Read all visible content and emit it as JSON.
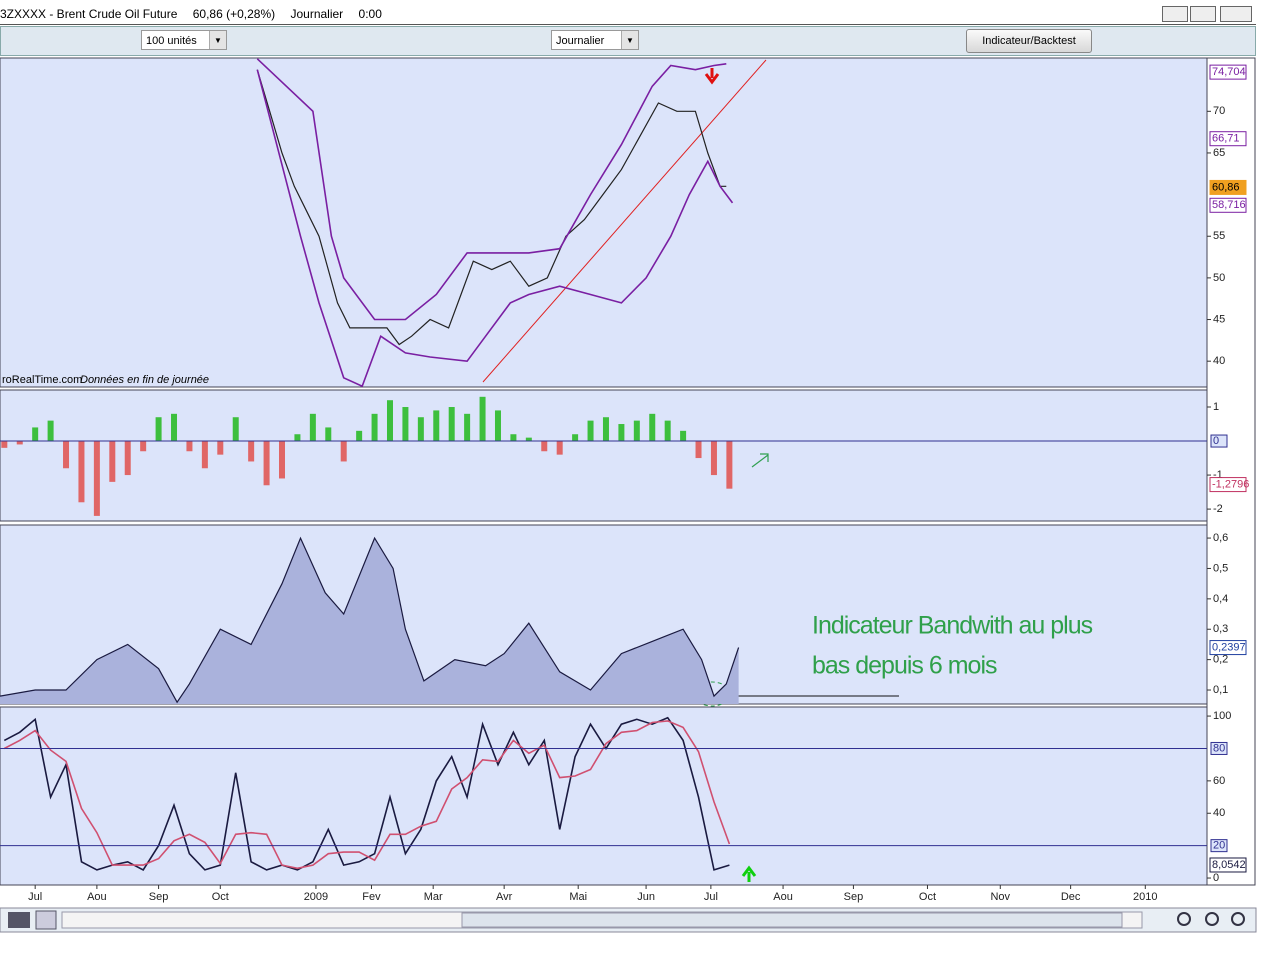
{
  "window": {
    "title": "3ZXXXX - Brent Crude Oil Future",
    "price": "60,86 (+0,28%)",
    "period": "Journalier",
    "time": "0:00"
  },
  "toolbar": {
    "units": "100 unités",
    "period": "Journalier",
    "button": "Indicateur/Backtest"
  },
  "source": "roRealTime.com",
  "note": "Données en fin de journée",
  "chart_data": [
    {
      "type": "line",
      "xlim": [
        -0.57,
        18.99
      ],
      "ylim": [
        36.9,
        76.4
      ],
      "yticks": [
        40,
        45,
        50,
        55,
        65,
        70
      ],
      "markers": [
        {
          "value": 74.704,
          "label": "74,704",
          "color": "#7a1fa2"
        },
        {
          "value": 66.71,
          "label": "66,71",
          "color": "#7a1fa2"
        },
        {
          "value": 60.86,
          "label": "60,86",
          "color": "#f0a020"
        },
        {
          "value": 58.716,
          "label": "58,716",
          "color": "#7a1fa2"
        }
      ],
      "series": [
        {
          "color": "#222222",
          "x": [
            3.6,
            3.8,
            4.0,
            4.2,
            4.4,
            4.6,
            4.9,
            5.1,
            5.4,
            5.7,
            5.9,
            6.1,
            6.4,
            6.7,
            6.9,
            7.1,
            7.4,
            7.7,
            8.0,
            8.3,
            8.6,
            8.9,
            9.2,
            9.5,
            9.8,
            10.1,
            10.4,
            10.7,
            10.9,
            11.1,
            11.2
          ],
          "values": [
            75,
            70,
            65,
            61,
            58,
            55,
            47,
            44,
            44,
            44,
            42,
            43,
            45,
            44,
            48,
            52,
            51,
            52,
            49,
            50,
            55,
            57,
            60,
            63,
            67,
            71,
            70,
            70,
            65,
            61,
            61
          ]
        },
        {
          "color": "#7a1fa2",
          "x": [
            3.6,
            4.3,
            4.6,
            5.0,
            5.3,
            5.6,
            6.0,
            6.4,
            7.0,
            7.3,
            7.7,
            8.0,
            8.5,
            9.0,
            9.5,
            9.9,
            10.3,
            10.6,
            10.9,
            11.1,
            11.3
          ],
          "values": [
            75,
            55,
            47,
            38,
            37,
            43,
            41,
            40.5,
            40,
            43,
            47,
            48,
            49,
            48,
            47,
            50,
            55,
            60,
            64,
            61,
            59
          ]
        },
        {
          "color": "#7a1fa2",
          "x": [
            3.6,
            4.5,
            4.8,
            5.0,
            5.5,
            6.0,
            6.5,
            7.0,
            7.5,
            8.0,
            8.5,
            9.0,
            9.5,
            10.0,
            10.3,
            10.7,
            11.0,
            11.2
          ],
          "values": [
            76.3,
            70,
            55,
            50,
            45,
            45,
            48,
            53,
            53,
            53,
            53.5,
            60,
            66,
            73,
            75.5,
            75,
            75.5,
            75.7
          ]
        }
      ]
    },
    {
      "type": "bar",
      "xlim": [
        -0.57,
        18.99
      ],
      "ylim": [
        -2.35,
        1.5
      ],
      "yticks": [
        1,
        -1,
        -2
      ],
      "lines": [
        {
          "value": 0,
          "label": "0"
        }
      ],
      "markers": [
        {
          "value": -1.2796,
          "label": "-1,2796",
          "color": "#c03060"
        }
      ],
      "colors": {
        "positive": "#3dbf3d",
        "negative": "#e06666"
      },
      "x": [
        -0.5,
        -0.25,
        0,
        0.25,
        0.5,
        0.75,
        1.0,
        1.25,
        1.5,
        1.75,
        2.0,
        2.25,
        2.5,
        2.75,
        3.0,
        3.25,
        3.5,
        3.75,
        4.0,
        4.25,
        4.5,
        4.75,
        5.0,
        5.25,
        5.5,
        5.75,
        6.0,
        6.25,
        6.5,
        6.75,
        7.0,
        7.25,
        7.5,
        7.75,
        8.0,
        8.25,
        8.5,
        8.75,
        9.0,
        9.25,
        9.5,
        9.75,
        10.0,
        10.25,
        10.5,
        10.75,
        11.0,
        11.25
      ],
      "values": [
        -0.2,
        -0.1,
        0.4,
        0.6,
        -0.8,
        -1.8,
        -2.2,
        -1.2,
        -1.0,
        -0.3,
        0.7,
        0.8,
        -0.3,
        -0.8,
        -0.4,
        0.7,
        -0.6,
        -1.3,
        -1.1,
        0.2,
        0.8,
        0.4,
        -0.6,
        0.3,
        0.8,
        1.2,
        1.0,
        0.7,
        0.9,
        1.0,
        0.8,
        1.3,
        0.9,
        0.2,
        0.1,
        -0.3,
        -0.4,
        0.2,
        0.6,
        0.7,
        0.5,
        0.6,
        0.8,
        0.6,
        0.3,
        -0.5,
        -1.0,
        -1.4
      ]
    },
    {
      "type": "area",
      "xlim": [
        -0.57,
        18.99
      ],
      "ylim": [
        0.054,
        0.643
      ],
      "yticks": [
        {
          "value": 0.6,
          "label": "0,6"
        },
        {
          "value": 0.5,
          "label": "0,5"
        },
        {
          "value": 0.4,
          "label": "0,4"
        },
        {
          "value": 0.3,
          "label": "0,3"
        },
        {
          "value": 0.2,
          "label": "0,2"
        },
        {
          "value": 0.1,
          "label": "0,1"
        }
      ],
      "markers": [
        {
          "value": 0.2397,
          "label": "0,2397",
          "color": "#2040a0"
        }
      ],
      "color": "#1a1a40",
      "fill": "#aab2dc",
      "annotation": [
        "Indicateur Bandwith au plus",
        "bas depuis 6 mois"
      ],
      "x": [
        -0.57,
        0,
        0.5,
        1.0,
        1.5,
        2.0,
        2.3,
        2.5,
        3.0,
        3.5,
        4.0,
        4.3,
        4.7,
        5.0,
        5.5,
        5.8,
        6.0,
        6.3,
        6.8,
        7.3,
        7.6,
        8.0,
        8.5,
        9.0,
        9.5,
        10.0,
        10.5,
        10.8,
        11.0,
        11.2,
        11.4
      ],
      "values": [
        0.08,
        0.1,
        0.1,
        0.2,
        0.25,
        0.17,
        0.06,
        0.12,
        0.3,
        0.25,
        0.45,
        0.6,
        0.42,
        0.35,
        0.6,
        0.5,
        0.3,
        0.13,
        0.2,
        0.18,
        0.22,
        0.32,
        0.16,
        0.1,
        0.22,
        0.26,
        0.3,
        0.2,
        0.08,
        0.12,
        0.24
      ]
    },
    {
      "type": "line",
      "xlim": [
        -0.57,
        18.99
      ],
      "ylim": [
        -4.3,
        105.6
      ],
      "yticks": [
        100,
        60,
        40,
        0
      ],
      "lines": [
        {
          "value": 80,
          "label": "80"
        },
        {
          "value": 20,
          "label": "20"
        }
      ],
      "markers": [
        {
          "value": 8.0542,
          "label": "8,0542",
          "color": "#1a1a40"
        }
      ],
      "xticks": [
        {
          "value": 0,
          "label": "Jul"
        },
        {
          "value": 1,
          "label": "Aou"
        },
        {
          "value": 2,
          "label": "Sep"
        },
        {
          "value": 3,
          "label": "Oct"
        },
        {
          "value": 4.55,
          "label": "2009"
        },
        {
          "value": 5.45,
          "label": "Fev"
        },
        {
          "value": 6.45,
          "label": "Mar"
        },
        {
          "value": 7.6,
          "label": "Avr"
        },
        {
          "value": 8.8,
          "label": "Mai"
        },
        {
          "value": 9.9,
          "label": "Jun"
        },
        {
          "value": 10.95,
          "label": "Jul"
        },
        {
          "value": 12.12,
          "label": "Aou"
        },
        {
          "value": 13.26,
          "label": "Sep"
        },
        {
          "value": 14.46,
          "label": "Oct"
        },
        {
          "value": 15.64,
          "label": "Nov"
        },
        {
          "value": 16.78,
          "label": "Dec"
        },
        {
          "value": 17.99,
          "label": "2010"
        }
      ],
      "series": [
        {
          "color": "#1a1a40",
          "x": [
            -0.5,
            -0.25,
            0,
            0.25,
            0.5,
            0.75,
            1.0,
            1.25,
            1.5,
            1.75,
            2.0,
            2.25,
            2.5,
            2.75,
            3.0,
            3.25,
            3.5,
            3.75,
            4.0,
            4.25,
            4.5,
            4.75,
            5.0,
            5.25,
            5.5,
            5.75,
            6.0,
            6.25,
            6.5,
            6.75,
            7.0,
            7.25,
            7.5,
            7.75,
            8.0,
            8.25,
            8.5,
            8.75,
            9.0,
            9.25,
            9.5,
            9.75,
            10.0,
            10.25,
            10.5,
            10.75,
            11.0,
            11.25
          ],
          "values": [
            85,
            90,
            98,
            50,
            70,
            10,
            5,
            8,
            10,
            5,
            20,
            45,
            15,
            5,
            8,
            65,
            10,
            5,
            8,
            5,
            10,
            30,
            8,
            10,
            15,
            50,
            15,
            30,
            60,
            75,
            50,
            95,
            70,
            90,
            70,
            85,
            30,
            75,
            95,
            80,
            95,
            98,
            95,
            99,
            85,
            50,
            5,
            8
          ]
        },
        {
          "color": "#d05070",
          "x": [
            -0.5,
            -0.25,
            0,
            0.25,
            0.5,
            0.75,
            1.0,
            1.25,
            1.5,
            1.75,
            2.0,
            2.25,
            2.5,
            2.75,
            3.0,
            3.25,
            3.5,
            3.75,
            4.0,
            4.25,
            4.5,
            4.75,
            5.0,
            5.25,
            5.5,
            5.75,
            6.0,
            6.25,
            6.5,
            6.75,
            7.0,
            7.25,
            7.5,
            7.75,
            8.0,
            8.25,
            8.5,
            8.75,
            9.0,
            9.25,
            9.5,
            9.75,
            10.0,
            10.25,
            10.5,
            10.75,
            11.0,
            11.25
          ],
          "values": [
            80,
            85,
            91,
            79,
            72,
            43,
            28,
            8,
            8,
            8,
            12,
            23,
            27,
            22,
            9,
            27,
            28,
            27,
            8,
            6,
            8,
            15,
            16,
            16,
            11,
            27,
            27,
            32,
            35,
            55,
            62,
            73,
            72,
            85,
            77,
            82,
            62,
            63,
            67,
            83,
            90,
            91,
            96,
            97,
            93,
            78,
            47,
            21
          ]
        }
      ]
    }
  ]
}
